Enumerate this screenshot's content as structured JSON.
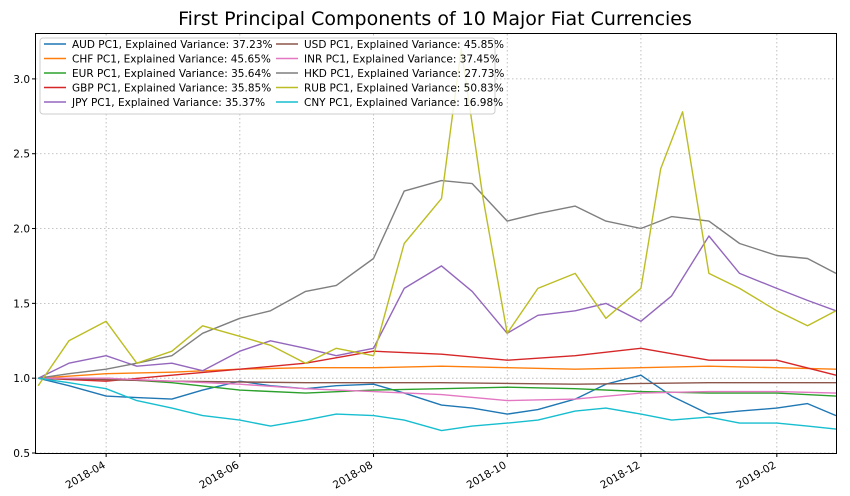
{
  "chart_data": {
    "type": "line",
    "title": "First Principal Components of 10 Major Fiat Currencies",
    "xlabel": "",
    "ylabel": "",
    "grid": true,
    "legend_placement": "upper-left, two columns",
    "xlim": [
      "2018-02-28",
      "2019-02-28"
    ],
    "ylim": [
      0.5,
      3.3
    ],
    "x_ticks": [
      "2018-04",
      "2018-06",
      "2018-08",
      "2018-10",
      "2018-12",
      "2019-02"
    ],
    "y_ticks": [
      "0.5",
      "1.0",
      "1.5",
      "2.0",
      "2.5",
      "3.0"
    ],
    "series": [
      {
        "name": "AUD PC1, Explained Variance: 37.23%",
        "color": "#1f77b4",
        "x": [
          "2018-03-01",
          "2018-03-15",
          "2018-04-01",
          "2018-04-15",
          "2018-05-01",
          "2018-05-15",
          "2018-06-01",
          "2018-06-15",
          "2018-07-01",
          "2018-07-15",
          "2018-08-01",
          "2018-08-15",
          "2018-09-01",
          "2018-09-15",
          "2018-10-01",
          "2018-10-15",
          "2018-11-01",
          "2018-11-15",
          "2018-12-01",
          "2018-12-15",
          "2019-01-01",
          "2019-01-15",
          "2019-02-01",
          "2019-02-15",
          "2019-02-28"
        ],
        "values": [
          1.0,
          0.95,
          0.88,
          0.87,
          0.86,
          0.92,
          0.98,
          0.95,
          0.93,
          0.95,
          0.96,
          0.9,
          0.82,
          0.8,
          0.76,
          0.79,
          0.86,
          0.96,
          1.02,
          0.88,
          0.76,
          0.78,
          0.8,
          0.83,
          0.75
        ]
      },
      {
        "name": "CHF PC1, Explained Variance: 45.65%",
        "color": "#ff7f0e",
        "x": [
          "2018-03-01",
          "2018-04-01",
          "2018-05-01",
          "2018-06-01",
          "2018-07-01",
          "2018-08-01",
          "2018-09-01",
          "2018-10-01",
          "2018-11-01",
          "2018-12-01",
          "2019-01-01",
          "2019-02-01",
          "2019-02-28"
        ],
        "values": [
          1.0,
          1.03,
          1.04,
          1.06,
          1.07,
          1.07,
          1.08,
          1.07,
          1.06,
          1.07,
          1.08,
          1.07,
          1.06
        ]
      },
      {
        "name": "EUR PC1, Explained Variance: 35.64%",
        "color": "#2ca02c",
        "x": [
          "2018-03-01",
          "2018-04-01",
          "2018-05-01",
          "2018-06-01",
          "2018-07-01",
          "2018-08-01",
          "2018-09-01",
          "2018-10-01",
          "2018-11-01",
          "2018-12-01",
          "2019-01-01",
          "2019-02-01",
          "2019-02-28"
        ],
        "values": [
          1.0,
          1.0,
          0.97,
          0.92,
          0.9,
          0.92,
          0.93,
          0.94,
          0.93,
          0.91,
          0.9,
          0.9,
          0.88
        ]
      },
      {
        "name": "GBP PC1, Explained Variance: 35.85%",
        "color": "#d62728",
        "x": [
          "2018-03-01",
          "2018-04-01",
          "2018-05-01",
          "2018-06-01",
          "2018-07-01",
          "2018-08-01",
          "2018-09-01",
          "2018-10-01",
          "2018-11-01",
          "2018-12-01",
          "2019-01-01",
          "2019-02-01",
          "2019-02-28"
        ],
        "values": [
          1.0,
          0.98,
          1.02,
          1.06,
          1.1,
          1.18,
          1.16,
          1.12,
          1.15,
          1.2,
          1.12,
          1.12,
          1.02
        ]
      },
      {
        "name": "JPY PC1, Explained Variance: 35.37%",
        "color": "#9467bd",
        "x": [
          "2018-03-01",
          "2018-03-15",
          "2018-04-01",
          "2018-04-15",
          "2018-05-01",
          "2018-05-15",
          "2018-06-01",
          "2018-06-15",
          "2018-07-01",
          "2018-07-15",
          "2018-08-01",
          "2018-08-15",
          "2018-09-01",
          "2018-09-15",
          "2018-10-01",
          "2018-10-15",
          "2018-11-01",
          "2018-11-15",
          "2018-12-01",
          "2018-12-15",
          "2019-01-01",
          "2019-01-15",
          "2019-02-01",
          "2019-02-15",
          "2019-02-28"
        ],
        "values": [
          1.0,
          1.1,
          1.15,
          1.08,
          1.1,
          1.05,
          1.18,
          1.25,
          1.2,
          1.15,
          1.2,
          1.6,
          1.75,
          1.58,
          1.3,
          1.42,
          1.45,
          1.5,
          1.38,
          1.55,
          1.95,
          1.7,
          1.6,
          1.52,
          1.45
        ]
      },
      {
        "name": "USD PC1, Explained Variance: 45.85%",
        "color": "#8c564b",
        "x": [
          "2018-03-01",
          "2018-05-01",
          "2018-07-01",
          "2018-09-01",
          "2018-11-01",
          "2019-01-01",
          "2019-02-28"
        ],
        "values": [
          1.0,
          0.98,
          0.97,
          0.97,
          0.96,
          0.97,
          0.97
        ]
      },
      {
        "name": "INR PC1, Explained Variance: 37.45%",
        "color": "#e377c2",
        "x": [
          "2018-03-01",
          "2018-04-01",
          "2018-05-01",
          "2018-06-01",
          "2018-07-01",
          "2018-08-01",
          "2018-09-01",
          "2018-10-01",
          "2018-11-01",
          "2018-12-01",
          "2019-01-01",
          "2019-02-01",
          "2019-02-28"
        ],
        "values": [
          1.0,
          1.0,
          0.98,
          0.96,
          0.93,
          0.91,
          0.89,
          0.85,
          0.86,
          0.9,
          0.91,
          0.91,
          0.9
        ]
      },
      {
        "name": "HKD PC1, Explained Variance: 27.73%",
        "color": "#7f7f7f",
        "x": [
          "2018-03-01",
          "2018-03-15",
          "2018-04-01",
          "2018-04-15",
          "2018-05-01",
          "2018-05-15",
          "2018-06-01",
          "2018-06-15",
          "2018-07-01",
          "2018-07-15",
          "2018-08-01",
          "2018-08-15",
          "2018-09-01",
          "2018-09-15",
          "2018-10-01",
          "2018-10-15",
          "2018-11-01",
          "2018-11-15",
          "2018-12-01",
          "2018-12-15",
          "2019-01-01",
          "2019-01-15",
          "2019-02-01",
          "2019-02-15",
          "2019-02-28"
        ],
        "values": [
          1.0,
          1.03,
          1.06,
          1.1,
          1.15,
          1.3,
          1.4,
          1.45,
          1.58,
          1.62,
          1.8,
          2.25,
          2.32,
          2.3,
          2.05,
          2.1,
          2.15,
          2.05,
          2.0,
          2.08,
          2.05,
          1.9,
          1.82,
          1.8,
          1.7
        ]
      },
      {
        "name": "RUB PC1, Explained Variance: 50.83%",
        "color": "#bcbd22",
        "x": [
          "2018-03-01",
          "2018-03-15",
          "2018-04-01",
          "2018-04-15",
          "2018-05-01",
          "2018-05-15",
          "2018-06-01",
          "2018-06-15",
          "2018-07-01",
          "2018-07-15",
          "2018-08-01",
          "2018-08-15",
          "2018-09-01",
          "2018-09-10",
          "2018-09-20",
          "2018-10-01",
          "2018-10-15",
          "2018-11-01",
          "2018-11-15",
          "2018-12-01",
          "2018-12-10",
          "2018-12-20",
          "2019-01-01",
          "2019-01-15",
          "2019-02-01",
          "2019-02-15",
          "2019-02-28"
        ],
        "values": [
          0.95,
          1.25,
          1.38,
          1.1,
          1.18,
          1.35,
          1.28,
          1.22,
          1.1,
          1.2,
          1.15,
          1.9,
          2.2,
          3.2,
          2.2,
          1.3,
          1.6,
          1.7,
          1.4,
          1.6,
          2.4,
          2.78,
          1.7,
          1.6,
          1.45,
          1.35,
          1.45
        ]
      },
      {
        "name": "CNY PC1, Explained Variance: 16.98%",
        "color": "#17becf",
        "x": [
          "2018-03-01",
          "2018-03-15",
          "2018-04-01",
          "2018-04-15",
          "2018-05-01",
          "2018-05-15",
          "2018-06-01",
          "2018-06-15",
          "2018-07-01",
          "2018-07-15",
          "2018-08-01",
          "2018-08-15",
          "2018-09-01",
          "2018-09-15",
          "2018-10-01",
          "2018-10-15",
          "2018-11-01",
          "2018-11-15",
          "2018-12-01",
          "2018-12-15",
          "2019-01-01",
          "2019-01-15",
          "2019-02-01",
          "2019-02-15",
          "2019-02-28"
        ],
        "values": [
          1.0,
          0.97,
          0.93,
          0.85,
          0.8,
          0.75,
          0.72,
          0.68,
          0.72,
          0.76,
          0.75,
          0.72,
          0.65,
          0.68,
          0.7,
          0.72,
          0.78,
          0.8,
          0.76,
          0.72,
          0.74,
          0.7,
          0.7,
          0.68,
          0.66
        ]
      }
    ]
  }
}
